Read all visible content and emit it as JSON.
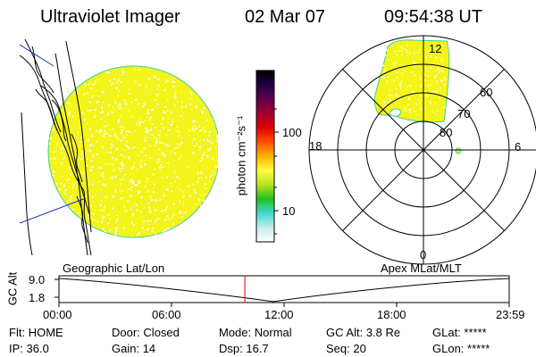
{
  "header": {
    "title": "Ultraviolet Imager",
    "date": "02 Mar 07",
    "time": "09:54:38 UT"
  },
  "colorbar": {
    "label": "photon cm⁻²s⁻¹",
    "ticks": [
      "100",
      "10"
    ],
    "colors": [
      "#ffffff",
      "#c8ecec",
      "#40d8d0",
      "#20c020",
      "#b8e020",
      "#ffff40",
      "#ffb000",
      "#ff5000",
      "#e00000",
      "#a00030",
      "#600050",
      "#200040",
      "#000000"
    ]
  },
  "polar": {
    "labels": {
      "top": "12",
      "bottom": "0",
      "left": "18",
      "right": "6",
      "ring60": "60",
      "ring70": "70",
      "ring80": "80"
    }
  },
  "panels": {
    "left_caption": "Geographic Lat/Lon",
    "right_caption": "Apex MLat/MLT"
  },
  "altitude_plot": {
    "ylabel": "GC Alt",
    "yticks": [
      "9.0",
      "1.8"
    ],
    "xticks": [
      "00:00",
      "06:00",
      "12:00",
      "18:00",
      "23:59"
    ],
    "marker_hour": 9.91
  },
  "status": {
    "row1": [
      {
        "k": "Flt:",
        "v": "HOME"
      },
      {
        "k": "Door:",
        "v": "Closed"
      },
      {
        "k": "Mode:",
        "v": "Normal"
      },
      {
        "k": "GC Alt:",
        "v": "3.8 Re"
      },
      {
        "k": "GLat:",
        "v": "*****"
      }
    ],
    "row2": [
      {
        "k": "IP:",
        "v": "36.0"
      },
      {
        "k": "Gain:",
        "v": "14"
      },
      {
        "k": "Dsp:",
        "v": "16.7"
      },
      {
        "k": "Seq:",
        "v": "20"
      },
      {
        "k": "GLon:",
        "v": "*****"
      }
    ]
  },
  "colors": {
    "disk_fill": "#f4f418",
    "disk_edge": "#40d0a0",
    "speckle": "#ffffff",
    "marker": "#e00000"
  }
}
